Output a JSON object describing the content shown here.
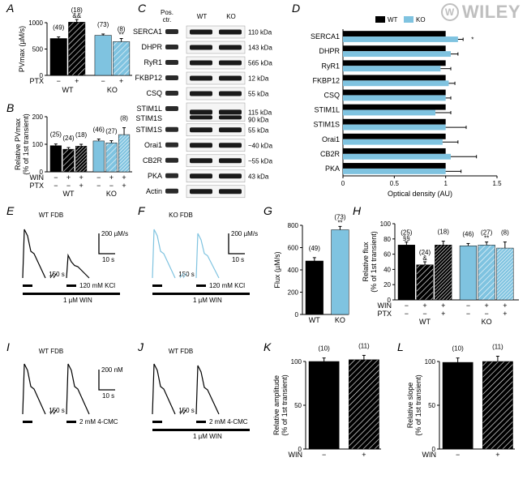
{
  "wiley": "WILEY",
  "labels": {
    "A": "A",
    "B": "B",
    "C": "C",
    "D": "D",
    "E": "E",
    "F": "F",
    "G": "G",
    "H": "H",
    "I": "I",
    "J": "J",
    "K": "K",
    "L": "L"
  },
  "colors": {
    "black": "#000000",
    "blue": "#7fc3e0",
    "grid": "#000000",
    "bg": "#ffffff"
  },
  "panelA": {
    "ylabel": "PVmax (µM/s)",
    "ylim": [
      0,
      1000
    ],
    "ytick_step": 500,
    "groups": [
      "WT",
      "KO"
    ],
    "x_sub": [
      "−",
      "+",
      "−",
      "+"
    ],
    "x_sub_row": "PTX",
    "n": [
      "(49)",
      "(18)",
      "(73)",
      "(8)"
    ],
    "sig": [
      "",
      "&&",
      "",
      "**"
    ],
    "values": [
      700,
      1010,
      760,
      640
    ],
    "errs": [
      30,
      50,
      25,
      60
    ],
    "colors": [
      "#000000",
      "#000000",
      "#7fc3e0",
      "#7fc3e0"
    ],
    "hatched": [
      false,
      true,
      false,
      true
    ]
  },
  "panelB": {
    "ylabel": "Relative PVmax\n(% of 1st transient)",
    "ylim": [
      0,
      200
    ],
    "ytick_step": 100,
    "groups": [
      "WT",
      "KO"
    ],
    "rows": [
      "WIN",
      "PTX"
    ],
    "row_vals": [
      [
        "−",
        "+",
        "+",
        "−",
        "+",
        "+"
      ],
      [
        "−",
        "−",
        "+",
        "−",
        "−",
        "+"
      ]
    ],
    "n": [
      "(25)",
      "(24)",
      "(18)",
      "(46)",
      "(27)",
      "(8)"
    ],
    "values": [
      95,
      82,
      93,
      112,
      105,
      135
    ],
    "errs": [
      6,
      6,
      7,
      7,
      8,
      25
    ],
    "colors": [
      "#000000",
      "#000000",
      "#000000",
      "#7fc3e0",
      "#7fc3e0",
      "#7fc3e0"
    ],
    "hatched": [
      false,
      true,
      true,
      false,
      true,
      true
    ],
    "dense": [
      false,
      false,
      true,
      false,
      false,
      true
    ]
  },
  "panelC": {
    "header": [
      "Pos.",
      "ctr.",
      "WT",
      "KO"
    ],
    "proteins": [
      "SERCA1",
      "DHPR",
      "RyR1",
      "FKBP12",
      "CSQ",
      "STIM1L",
      "STIM1S",
      "Orai1",
      "CB2R",
      "PKA",
      "Actin"
    ],
    "kda": [
      "110 kDa",
      "143 kDa",
      "565 kDa",
      "12 kDa",
      "55 kDa",
      "115 kDa",
      "90 kDa",
      "55 kDa",
      "~40 kDa",
      "~55 kDa",
      "43 kDa"
    ]
  },
  "panelD": {
    "xlabel": "Optical density (AU)",
    "xlim": [
      0,
      1.5
    ],
    "xtick_step": 0.5,
    "legend": [
      "WT",
      "KO"
    ],
    "proteins": [
      "SERCA1",
      "DHPR",
      "RyR1",
      "FKBP12",
      "CSQ",
      "STIM1L",
      "STIM1S",
      "Orai1",
      "CB2R",
      "PKA"
    ],
    "wt_vals": [
      1,
      1,
      1,
      1,
      1,
      1,
      1,
      1,
      1,
      1
    ],
    "ko_vals": [
      1.12,
      1.05,
      0.95,
      1.03,
      1.0,
      0.9,
      1.0,
      0.97,
      1.05,
      1.0
    ],
    "wt_err": [
      0,
      0,
      0,
      0,
      0,
      0,
      0,
      0,
      0,
      0
    ],
    "ko_err": [
      0.05,
      0.07,
      0.1,
      0.06,
      0.05,
      0.15,
      0.2,
      0.15,
      0.25,
      0.15
    ],
    "sig": [
      "*",
      "",
      "",
      "",
      "",
      "",
      "",
      "",
      "",
      ""
    ]
  },
  "panelE": {
    "title": "WT FDB",
    "scale_y": "200 µM/s",
    "scale_x": "10 s",
    "gap": "150 s",
    "kcl": "120 mM KCl",
    "win": "1 µM WIN",
    "color": "#000000"
  },
  "panelF": {
    "title": "KO FDB",
    "scale_y": "200 µM/s",
    "scale_x": "10 s",
    "gap": "150 s",
    "kcl": "120 mM KCl",
    "win": "1 µM WIN",
    "color": "#7fc3e0"
  },
  "panelG": {
    "ylabel": "Flux (µM/s)",
    "ylim": [
      0,
      800
    ],
    "ytick_step": 200,
    "cats": [
      "WT",
      "KO"
    ],
    "n": [
      "(49)",
      "(73)"
    ],
    "sig": [
      "",
      "**"
    ],
    "values": [
      480,
      760
    ],
    "errs": [
      30,
      30
    ],
    "colors": [
      "#000000",
      "#7fc3e0"
    ]
  },
  "panelH": {
    "ylabel": "Relative flux\n(% of 1st transient)",
    "ylim": [
      0,
      100
    ],
    "ytick_step": 20,
    "groups": [
      "WT",
      "KO"
    ],
    "rows": [
      "WIN",
      "PTX"
    ],
    "row_vals": [
      [
        "−",
        "+",
        "+",
        "−",
        "+",
        "+"
      ],
      [
        "−",
        "−",
        "+",
        "−",
        "−",
        "+"
      ]
    ],
    "n": [
      "(25)",
      "(24)",
      "(18)",
      "(46)",
      "(27)",
      "(8)"
    ],
    "sig_over": [
      "§§",
      "&",
      "",
      "",
      "**",
      ""
    ],
    "values": [
      72,
      46,
      72,
      71,
      72,
      68
    ],
    "errs": [
      4,
      4,
      5,
      3,
      4,
      8
    ],
    "colors": [
      "#000000",
      "#000000",
      "#000000",
      "#7fc3e0",
      "#7fc3e0",
      "#7fc3e0"
    ],
    "hatched": [
      false,
      true,
      true,
      false,
      true,
      true
    ],
    "dense": [
      false,
      false,
      true,
      false,
      false,
      true
    ]
  },
  "panelI": {
    "title": "WT FDB",
    "scale_y": "200 nM",
    "scale_x": "10 s",
    "gap": "150 s",
    "stim": "2 mM 4-CMC"
  },
  "panelJ": {
    "title": "WT FDB",
    "gap": "150 s",
    "stim": "2 mM 4-CMC",
    "win": "1 µM WIN"
  },
  "panelK": {
    "ylabel": "Relative amplitude\n(% of 1st transient)",
    "ylim": [
      0,
      100
    ],
    "ytick_step": 50,
    "n": [
      "(10)",
      "(11)"
    ],
    "row": "WIN",
    "row_vals": [
      "−",
      "+"
    ],
    "values": [
      100,
      102
    ],
    "errs": [
      4,
      5
    ],
    "colors": [
      "#000000",
      "#000000"
    ],
    "hatched": [
      false,
      true
    ]
  },
  "panelL": {
    "ylabel": "Relative slope\n(% of 1st transient)",
    "ylim": [
      0,
      100
    ],
    "ytick_step": 50,
    "n": [
      "(10)",
      "(11)"
    ],
    "row": "WIN",
    "row_vals": [
      "−",
      "+"
    ],
    "values": [
      99,
      100
    ],
    "errs": [
      5,
      6
    ],
    "colors": [
      "#000000",
      "#000000"
    ],
    "hatched": [
      false,
      true
    ]
  }
}
